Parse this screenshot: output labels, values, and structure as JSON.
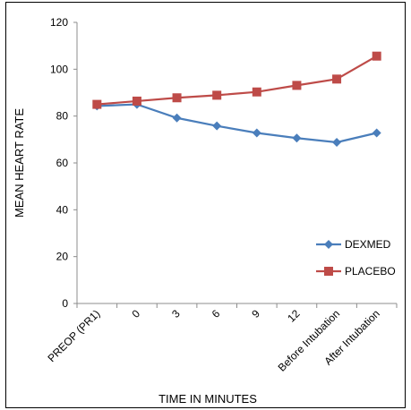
{
  "chart_data": {
    "type": "line",
    "categories": [
      "PREOP (PR1)",
      "0",
      "3",
      "6",
      "9",
      "12",
      "Before Intubation",
      "After Intubation"
    ],
    "series": [
      {
        "name": "DEXMED",
        "color": "#4a7ebb",
        "marker": "diamond",
        "values": [
          84.3,
          85.0,
          79.2,
          75.8,
          72.8,
          70.6,
          68.8,
          72.8
        ]
      },
      {
        "name": "PLACEBO",
        "color": "#be4b48",
        "marker": "square",
        "values": [
          85.0,
          86.4,
          87.8,
          88.9,
          90.3,
          93.1,
          95.8,
          105.6
        ]
      }
    ],
    "title": "",
    "xlabel": "TIME IN MINUTES",
    "ylabel": "MEAN HEART  RATE",
    "ylim": [
      0,
      120
    ],
    "yticks": [
      0,
      20,
      40,
      60,
      80,
      100,
      120
    ],
    "grid": false,
    "legend": "right"
  }
}
